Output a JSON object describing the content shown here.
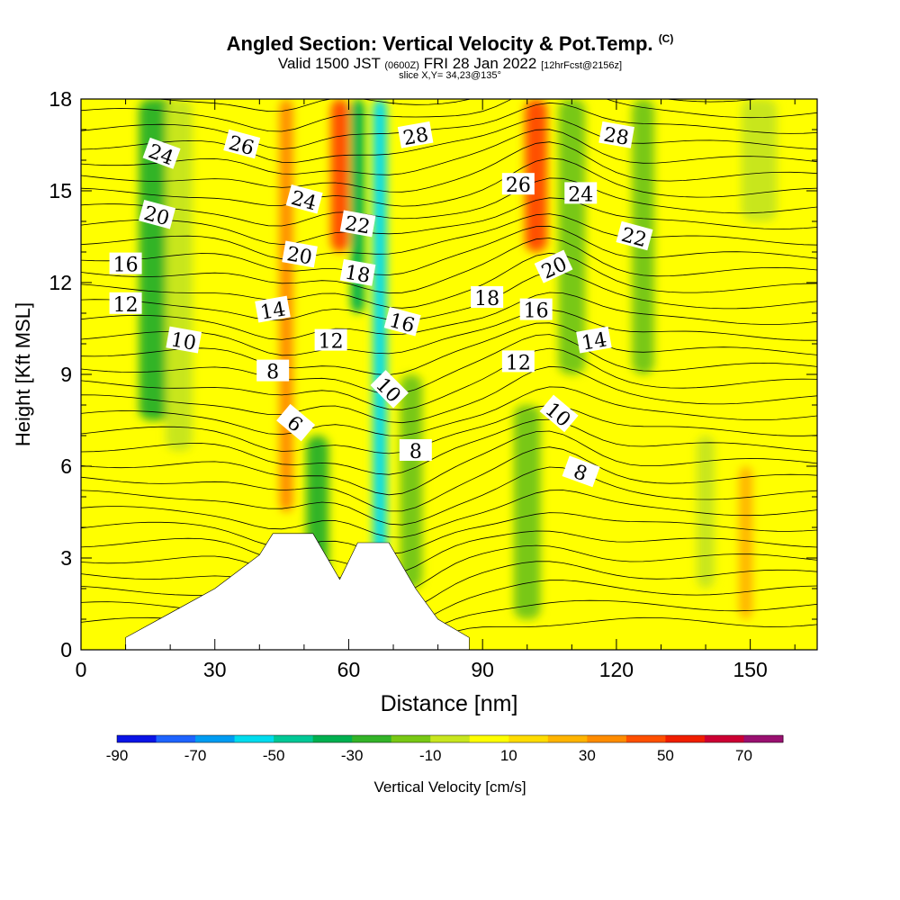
{
  "header": {
    "title": "Angled Section: Vertical Velocity & Pot.Temp.",
    "title_tag": "(C)",
    "valid_pre": "Valid 1500 JST",
    "valid_utc": "(0600Z)",
    "valid_date": "FRI 28 Jan 2022",
    "forecast_tag": "[12hrFcst@2156z]",
    "slice": "slice X,Y= 34,23@135°"
  },
  "chart_data": {
    "type": "heatmap",
    "title": "Angled Section: Vertical Velocity & Pot.Temp.",
    "xlabel": "Distance [nm]",
    "ylabel": "Height [Kft MSL]",
    "xlim": [
      0,
      165
    ],
    "ylim": [
      0,
      18
    ],
    "x_ticks": [
      0,
      30,
      60,
      90,
      120,
      150
    ],
    "y_ticks": [
      0,
      3,
      6,
      9,
      12,
      15,
      18
    ],
    "colorbar": {
      "label": "Vertical Velocity [cm/s]",
      "levels": [
        -90,
        -80,
        -70,
        -60,
        -50,
        -40,
        -30,
        -20,
        -10,
        0,
        10,
        20,
        30,
        40,
        50,
        60,
        70,
        80
      ],
      "tick_labels": [
        "-90",
        "-70",
        "-50",
        "-30",
        "-10",
        "10",
        "30",
        "50",
        "70"
      ],
      "colors": [
        "#0a14e6",
        "#1e64ff",
        "#009cf2",
        "#00dcee",
        "#00c896",
        "#00b050",
        "#33b428",
        "#78c814",
        "#c8e61e",
        "#ffff00",
        "#ffdc00",
        "#ffb400",
        "#ff8c00",
        "#ff5000",
        "#f01e00",
        "#cc0033",
        "#991070"
      ]
    },
    "wind_bands": [
      {
        "x": 17,
        "w": 8,
        "w_cms": -25,
        "top": 18,
        "bottom": 7.5
      },
      {
        "x": 22,
        "w": 6,
        "w_cms": -10,
        "top": 18,
        "bottom": 6.5
      },
      {
        "x": 46,
        "w": 3,
        "w_cms": 30,
        "top": 18,
        "bottom": 4.5
      },
      {
        "x": 58,
        "w": 4,
        "w_cms": 45,
        "top": 18,
        "bottom": 13
      },
      {
        "x": 53,
        "w": 5,
        "w_cms": -25,
        "top": 7,
        "bottom": 2
      },
      {
        "x": 62,
        "w": 3,
        "w_cms": -40,
        "top": 18,
        "bottom": 11
      },
      {
        "x": 67,
        "w": 3,
        "w_cms": -55,
        "top": 18,
        "bottom": 3
      },
      {
        "x": 74,
        "w": 5,
        "w_cms": -15,
        "top": 9,
        "bottom": 2
      },
      {
        "x": 102,
        "w": 5,
        "w_cms": 45,
        "top": 18,
        "bottom": 13
      },
      {
        "x": 110,
        "w": 6,
        "w_cms": -20,
        "top": 18,
        "bottom": 9
      },
      {
        "x": 100,
        "w": 6,
        "w_cms": -20,
        "top": 8,
        "bottom": 1
      },
      {
        "x": 126,
        "w": 5,
        "w_cms": -15,
        "top": 18,
        "bottom": 9
      },
      {
        "x": 140,
        "w": 4,
        "w_cms": -10,
        "top": 7,
        "bottom": 2
      },
      {
        "x": 149,
        "w": 3,
        "w_cms": 25,
        "top": 6,
        "bottom": 1
      },
      {
        "x": 152,
        "w": 8,
        "w_cms": -5,
        "top": 18,
        "bottom": 14
      }
    ],
    "terrain": [
      [
        10,
        0.4
      ],
      [
        20,
        1.2
      ],
      [
        30,
        2
      ],
      [
        40,
        3.1
      ],
      [
        43,
        3.8
      ],
      [
        52,
        3.8
      ],
      [
        58,
        2.3
      ],
      [
        62,
        3.5
      ],
      [
        69,
        3.5
      ],
      [
        75,
        2
      ],
      [
        80,
        1
      ],
      [
        87,
        0.4
      ]
    ],
    "contour_levels": [
      6,
      8,
      10,
      12,
      14,
      16,
      18,
      20,
      22,
      24,
      26,
      28
    ],
    "contour_labels": [
      {
        "text": "24",
        "x": 18,
        "y": 16.2,
        "rot": 20
      },
      {
        "text": "26",
        "x": 36,
        "y": 16.5,
        "rot": 15
      },
      {
        "text": "20",
        "x": 17,
        "y": 14.2,
        "rot": 15
      },
      {
        "text": "16",
        "x": 10,
        "y": 12.6,
        "rot": 0
      },
      {
        "text": "12",
        "x": 10,
        "y": 11.3,
        "rot": 0
      },
      {
        "text": "10",
        "x": 23,
        "y": 10.1,
        "rot": 10
      },
      {
        "text": "24",
        "x": 50,
        "y": 14.7,
        "rot": 15
      },
      {
        "text": "20",
        "x": 49,
        "y": 12.9,
        "rot": 10
      },
      {
        "text": "14",
        "x": 43,
        "y": 11.1,
        "rot": -10
      },
      {
        "text": "8",
        "x": 43,
        "y": 9.1,
        "rot": 0
      },
      {
        "text": "6",
        "x": 48,
        "y": 7.4,
        "rot": 40
      },
      {
        "text": "22",
        "x": 62,
        "y": 13.9,
        "rot": 10
      },
      {
        "text": "18",
        "x": 62,
        "y": 12.3,
        "rot": 10
      },
      {
        "text": "12",
        "x": 56,
        "y": 10.1,
        "rot": 0
      },
      {
        "text": "16",
        "x": 72,
        "y": 10.7,
        "rot": 15
      },
      {
        "text": "10",
        "x": 69,
        "y": 8.5,
        "rot": 45
      },
      {
        "text": "8",
        "x": 75,
        "y": 6.5,
        "rot": 0
      },
      {
        "text": "28",
        "x": 75,
        "y": 16.8,
        "rot": -10
      },
      {
        "text": "18",
        "x": 91,
        "y": 11.5,
        "rot": 0
      },
      {
        "text": "26",
        "x": 98,
        "y": 15.2,
        "rot": 0
      },
      {
        "text": "24",
        "x": 112,
        "y": 14.9,
        "rot": 0
      },
      {
        "text": "20",
        "x": 106,
        "y": 12.5,
        "rot": -25
      },
      {
        "text": "16",
        "x": 102,
        "y": 11.1,
        "rot": 0
      },
      {
        "text": "12",
        "x": 98,
        "y": 9.4,
        "rot": 0
      },
      {
        "text": "14",
        "x": 115,
        "y": 10.1,
        "rot": -10
      },
      {
        "text": "10",
        "x": 107,
        "y": 7.7,
        "rot": 40
      },
      {
        "text": "8",
        "x": 112,
        "y": 5.8,
        "rot": 20
      },
      {
        "text": "28",
        "x": 120,
        "y": 16.8,
        "rot": 10
      },
      {
        "text": "22",
        "x": 124,
        "y": 13.5,
        "rot": 15
      }
    ]
  }
}
